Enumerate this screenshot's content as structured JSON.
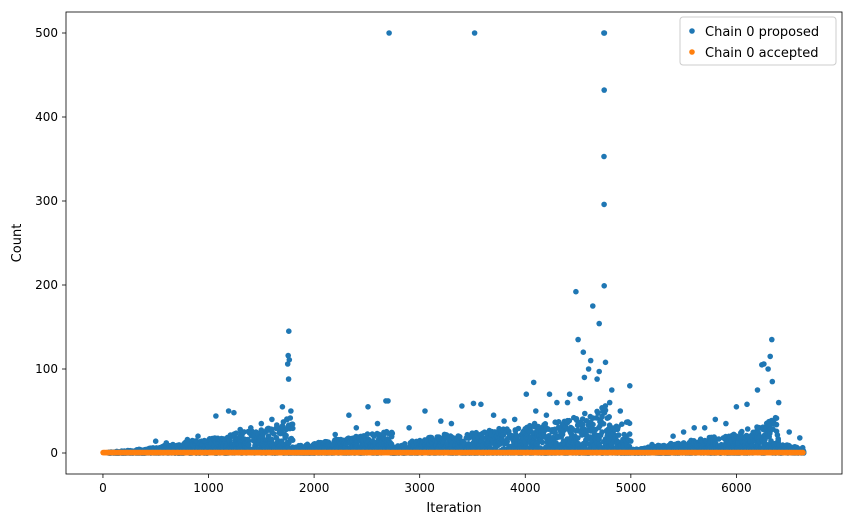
{
  "chart_data": {
    "type": "scatter",
    "title": "",
    "xlabel": "Iteration",
    "ylabel": "Count",
    "xlim": [
      -350,
      7000
    ],
    "ylim": [
      -25,
      525
    ],
    "xticks": [
      0,
      1000,
      2000,
      3000,
      4000,
      5000,
      6000
    ],
    "yticks": [
      0,
      100,
      200,
      300,
      400,
      500
    ],
    "grid": false,
    "legend_position": "top-right",
    "series": [
      {
        "name": "Chain 0 proposed",
        "color": "#1f77b4",
        "marker": "circle",
        "points": [
          [
            2710,
            500
          ],
          [
            3520,
            500
          ],
          [
            4745,
            500
          ],
          [
            4750,
            500
          ],
          [
            4748,
            432
          ],
          [
            4746,
            353
          ],
          [
            4747,
            296
          ],
          [
            4748,
            199
          ],
          [
            4480,
            192
          ],
          [
            4640,
            175
          ],
          [
            4700,
            154
          ],
          [
            1760,
            145
          ],
          [
            1755,
            116
          ],
          [
            1765,
            111
          ],
          [
            1750,
            106
          ],
          [
            1758,
            88
          ],
          [
            6335,
            135
          ],
          [
            6320,
            115
          ],
          [
            6260,
            106
          ],
          [
            6240,
            105
          ],
          [
            6300,
            100
          ],
          [
            2680,
            62
          ],
          [
            2700,
            62
          ],
          [
            4080,
            84
          ],
          [
            4550,
            120
          ],
          [
            4600,
            100
          ],
          [
            4500,
            135
          ],
          [
            4620,
            110
          ],
          [
            4700,
            97
          ],
          [
            4760,
            108
          ],
          [
            4560,
            90
          ],
          [
            4990,
            80
          ],
          [
            4010,
            70
          ],
          [
            4230,
            70
          ],
          [
            3510,
            59
          ],
          [
            3580,
            58
          ],
          [
            3050,
            50
          ],
          [
            3400,
            56
          ],
          [
            1070,
            44
          ],
          [
            1190,
            50
          ],
          [
            1240,
            48
          ],
          [
            2510,
            55
          ],
          [
            2330,
            45
          ],
          [
            3700,
            45
          ],
          [
            3900,
            40
          ],
          [
            4300,
            60
          ],
          [
            4400,
            60
          ],
          [
            4800,
            60
          ],
          [
            4900,
            50
          ],
          [
            5600,
            30
          ],
          [
            5800,
            40
          ],
          [
            6000,
            55
          ],
          [
            6100,
            58
          ],
          [
            6200,
            75
          ],
          [
            6340,
            85
          ],
          [
            6400,
            60
          ],
          [
            1700,
            55
          ],
          [
            1780,
            50
          ],
          [
            1600,
            40
          ],
          [
            1500,
            35
          ],
          [
            1400,
            30
          ],
          [
            1300,
            28
          ],
          [
            900,
            20
          ],
          [
            800,
            16
          ],
          [
            600,
            12
          ],
          [
            500,
            14
          ],
          [
            2200,
            22
          ],
          [
            2400,
            30
          ],
          [
            2600,
            35
          ],
          [
            2900,
            30
          ],
          [
            3200,
            38
          ],
          [
            3300,
            35
          ],
          [
            3800,
            38
          ],
          [
            4100,
            50
          ],
          [
            4200,
            45
          ],
          [
            5200,
            10
          ],
          [
            5400,
            20
          ],
          [
            5500,
            25
          ],
          [
            5700,
            30
          ],
          [
            5900,
            35
          ],
          [
            6500,
            25
          ],
          [
            6600,
            18
          ],
          [
            4820,
            75
          ],
          [
            4680,
            88
          ],
          [
            4520,
            65
          ],
          [
            4420,
            70
          ]
        ],
        "bands": [
          {
            "x": [
              50,
              400
            ],
            "max": [
              1,
              5
            ]
          },
          {
            "x": [
              400,
              800
            ],
            "max": [
              5,
              14
            ]
          },
          {
            "x": [
              800,
              1200
            ],
            "max": [
              14,
              22
            ]
          },
          {
            "x": [
              1200,
              1600
            ],
            "max": [
              22,
              32
            ]
          },
          {
            "x": [
              1600,
              1750
            ],
            "max": [
              32,
              42
            ]
          },
          {
            "x": [
              1750,
              1800
            ],
            "max": [
              40,
              45
            ]
          },
          {
            "x": [
              1800,
              2000
            ],
            "max": [
              8,
              12
            ]
          },
          {
            "x": [
              2000,
              2400
            ],
            "max": [
              12,
              20
            ]
          },
          {
            "x": [
              2400,
              2750
            ],
            "max": [
              20,
              28
            ]
          },
          {
            "x": [
              2750,
              2850
            ],
            "max": [
              8,
              10
            ]
          },
          {
            "x": [
              2850,
              3300
            ],
            "max": [
              12,
              24
            ]
          },
          {
            "x": [
              3300,
              3800
            ],
            "max": [
              20,
              30
            ]
          },
          {
            "x": [
              3800,
              4200
            ],
            "max": [
              28,
              38
            ]
          },
          {
            "x": [
              4200,
              4500
            ],
            "max": [
              35,
              45
            ]
          },
          {
            "x": [
              4500,
              4800
            ],
            "max": [
              45,
              60
            ]
          },
          {
            "x": [
              4800,
              5000
            ],
            "max": [
              30,
              40
            ]
          },
          {
            "x": [
              5000,
              5100
            ],
            "max": [
              4,
              6
            ]
          },
          {
            "x": [
              5100,
              5500
            ],
            "max": [
              6,
              14
            ]
          },
          {
            "x": [
              5500,
              5900
            ],
            "max": [
              14,
              22
            ]
          },
          {
            "x": [
              5900,
              6200
            ],
            "max": [
              22,
              32
            ]
          },
          {
            "x": [
              6200,
              6400
            ],
            "max": [
              32,
              45
            ]
          },
          {
            "x": [
              6400,
              6640
            ],
            "max": [
              12,
              6
            ]
          }
        ]
      },
      {
        "name": "Chain 0 accepted",
        "color": "#ff7f0e",
        "marker": "circle",
        "points": [],
        "bands": [
          {
            "x": [
              0,
              6640
            ],
            "max": [
              1,
              1
            ]
          }
        ]
      }
    ]
  }
}
